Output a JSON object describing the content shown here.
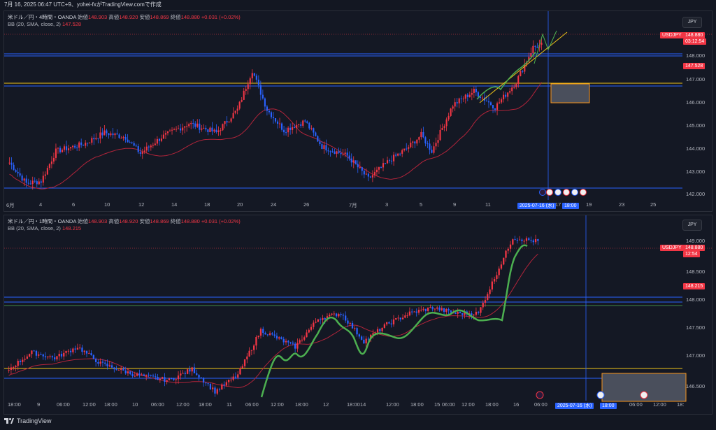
{
  "header": {
    "text": "7月 16, 2025 06:47 UTC+9、yohei-fxがTradingView.comで作成"
  },
  "top": {
    "legend1": "米ドル／円・4時間・OANDA",
    "o_lbl": "始値",
    "o": "148.903",
    "h_lbl": "高値",
    "h": "148.920",
    "l_lbl": "安値",
    "l": "148.869",
    "c_lbl": "終値",
    "c": "148.880",
    "chg": "+0.031 (+0.02%)",
    "bb": "BB (20, SMA, close, 2)",
    "bb_val": "147.528",
    "currency": "JPY",
    "symbol_tag": "USDJPY",
    "price_tag": "148.880",
    "countdown": "03:12:54",
    "bb_tag": "147.528",
    "price_labels": [
      "148.000",
      "147.000",
      "146.000",
      "145.000",
      "144.000",
      "143.000",
      "142.000"
    ],
    "time_labels": [
      "6月",
      "4",
      "6",
      "10",
      "12",
      "14",
      "18",
      "20",
      "24",
      "26",
      "7月",
      "3",
      "5",
      "9",
      "11",
      "15",
      "17",
      "19",
      "23",
      "25"
    ],
    "date_tag": "2025-07-16 (水)",
    "time_tag": "18:00"
  },
  "bottom": {
    "legend1": "米ドル／円・1時間・OANDA",
    "o_lbl": "始値",
    "o": "148.903",
    "h_lbl": "高値",
    "h": "148.920",
    "l_lbl": "安値",
    "l": "148.869",
    "c_lbl": "終値",
    "c": "148.880",
    "chg": "+0.031 (+0.02%)",
    "bb": "BB (20, SMA, close, 2)",
    "bb_val": "148.215",
    "currency": "JPY",
    "symbol_tag": "USDJPY",
    "price_tag": "148.880",
    "countdown": "12:54",
    "bb_tag": "148.215",
    "price_labels": [
      "149.000",
      "148.500",
      "148.000",
      "147.500",
      "147.000",
      "146.500"
    ],
    "time_labels": [
      "18:00",
      "9",
      "06:00",
      "12:00",
      "18:00",
      "10",
      "06:00",
      "12:00",
      "18:00",
      "11",
      "06:00",
      "12:00",
      "18:00",
      "12",
      "18:00",
      "14",
      "12:00",
      "18:00",
      "15",
      "06:00",
      "12:00",
      "18:00",
      "16",
      "06:00",
      "06:00",
      "12:00",
      "18:"
    ],
    "date_tag": "2025-07-16 (水)",
    "time_tag": "18:00"
  },
  "footer": {
    "brand": "TradingView"
  },
  "colors": {
    "up": "#f23645",
    "down": "#2962ff",
    "bb": "#b2243a",
    "yellow": "#f0c419",
    "blue_line": "#2962ff",
    "green": "#4caf50"
  }
}
